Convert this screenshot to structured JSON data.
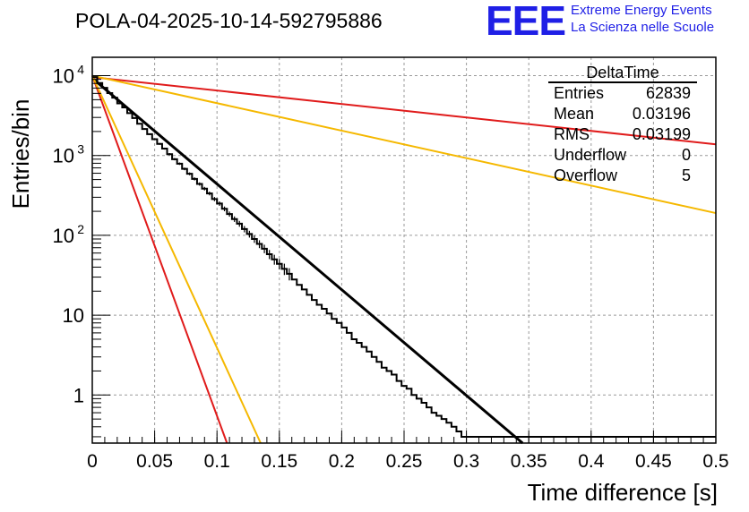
{
  "header": {
    "title": "POLA-04-2025-10-14-592795886",
    "logo_text": "EEE",
    "logo_line1": "Extreme Energy Events",
    "logo_line2": "La Scienza nelle Scuole",
    "logo_color": "#1f1fe6"
  },
  "stats": {
    "name": "DeltaTime",
    "rows": [
      {
        "label": "Entries",
        "value": "62839"
      },
      {
        "label": "Mean",
        "value": "0.03196"
      },
      {
        "label": "RMS",
        "value": "0.03199"
      },
      {
        "label": "Underflow",
        "value": "0"
      },
      {
        "label": "Overflow",
        "value": "5"
      }
    ]
  },
  "chart_data": {
    "type": "line",
    "title": "POLA-04-2025-10-14-592795886",
    "xlabel": "Time difference [s]",
    "ylabel": "Entries/bin",
    "xlim": [
      0,
      0.5
    ],
    "ylim": [
      0.25,
      17000
    ],
    "yscale": "log",
    "grid": true,
    "x_ticks": [
      "0",
      "0.05",
      "0.1",
      "0.15",
      "0.2",
      "0.25",
      "0.3",
      "0.35",
      "0.4",
      "0.45",
      "0.5"
    ],
    "y_ticks": [
      {
        "value": 1,
        "label": "1"
      },
      {
        "value": 10,
        "label": "10"
      },
      {
        "value": 100,
        "label": "10",
        "exp": "2"
      },
      {
        "value": 1000,
        "label": "10",
        "exp": "3"
      },
      {
        "value": 10000,
        "label": "10",
        "exp": "4"
      }
    ],
    "histogram": {
      "name": "DeltaTime",
      "bin_width": 0.004,
      "color": "#000000",
      "counts": [
        9600,
        8100,
        7050,
        6050,
        5300,
        4500,
        4000,
        3400,
        2950,
        2500,
        2150,
        1850,
        1600,
        1400,
        1220,
        1040,
        900,
        790,
        680,
        590,
        510,
        440,
        385,
        335,
        285,
        250,
        215,
        185,
        160,
        140,
        120,
        104,
        90,
        78,
        68,
        58,
        50,
        44,
        38,
        33,
        28,
        24,
        21,
        18,
        15.5,
        13.5,
        12,
        10.5,
        9,
        8,
        7,
        6,
        5,
        4.5,
        4,
        3.5,
        3,
        2.6,
        2.2,
        2,
        1.8,
        1.5,
        1.3,
        1.2,
        1,
        0.9,
        0.8,
        0.7,
        0.6,
        0.55,
        0.5,
        0.45,
        0.4,
        0.35,
        0.3,
        0.3,
        0.3,
        0.3,
        0.3,
        0.3,
        0.3,
        0.3,
        0.3,
        0.3,
        0.3,
        0.3,
        0.3,
        0.3,
        0.3,
        0.3,
        0.3,
        0.3,
        0.3,
        0.3,
        0.3,
        0.3,
        0.3,
        0.3,
        0.3,
        0.3,
        0.3,
        0.3,
        0.3,
        0.3,
        0.3,
        0.3,
        0.3,
        0.3,
        0.3,
        0.3,
        0.3,
        0.3,
        0.3,
        0.3,
        0.3,
        0.3,
        0.3,
        0.3,
        0.3,
        0.3,
        0.3,
        0.3,
        0.3,
        0.3,
        0.3
      ]
    },
    "series": [
      {
        "name": "fit",
        "color": "#000000",
        "width": 3,
        "points": [
          [
            0,
            9300
          ],
          [
            0.345,
            0.25
          ]
        ]
      },
      {
        "name": "red-slow",
        "color": "#e01b1b",
        "width": 2,
        "points": [
          [
            0,
            9600
          ],
          [
            0.5,
            1380
          ]
        ]
      },
      {
        "name": "orange-slow",
        "color": "#f5b800",
        "width": 2,
        "points": [
          [
            0,
            10000
          ],
          [
            0.5,
            190
          ]
        ]
      },
      {
        "name": "red-fast",
        "color": "#e01b1b",
        "width": 2,
        "points": [
          [
            0,
            10000
          ],
          [
            0.108,
            0.25
          ]
        ]
      },
      {
        "name": "orange-fast",
        "color": "#f5b800",
        "width": 2,
        "points": [
          [
            0,
            10000
          ],
          [
            0.135,
            0.25
          ]
        ]
      }
    ]
  }
}
